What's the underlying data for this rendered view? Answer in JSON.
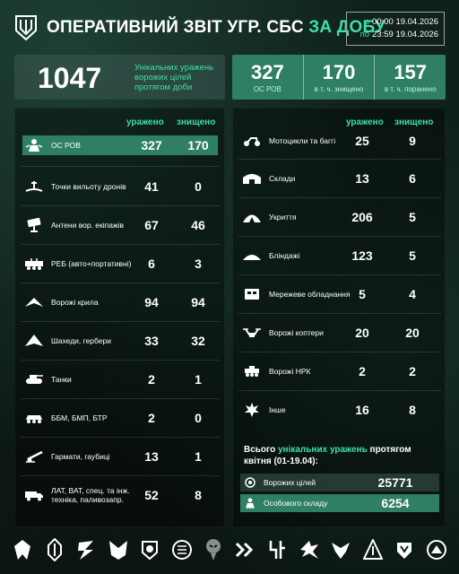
{
  "header": {
    "title_main": "Оперативний звіт УГР. СБС ",
    "title_accent": "за добу",
    "period": {
      "from_label": "з",
      "from_value": "00:00 19.04.2026",
      "to_label": "по",
      "to_value": "23:59 19.04.2026"
    }
  },
  "summary": {
    "unique_hits": "1047",
    "unique_hits_label": "Унікальних уражень ворожих цілей протягом доби",
    "personnel": [
      {
        "value": "327",
        "label": "ОС РОВ"
      },
      {
        "value": "170",
        "label": "в т. ч. знищено"
      },
      {
        "value": "157",
        "label": "в т. ч. поранено"
      }
    ]
  },
  "columns": {
    "hit": "уражено",
    "destroyed": "знищено"
  },
  "left_items": [
    {
      "name": "ОС РОВ",
      "hit": "327",
      "destroyed": "170",
      "icon": "personnel-icon"
    },
    {
      "name": "Точки вильоту дронів",
      "hit": "41",
      "destroyed": "0",
      "icon": "launch-point-icon"
    },
    {
      "name": "Антени вор. екіпажів",
      "hit": "67",
      "destroyed": "46",
      "icon": "antenna-icon"
    },
    {
      "name": "РЕБ (авто+портативні)",
      "hit": "6",
      "destroyed": "3",
      "icon": "ew-icon"
    },
    {
      "name": "Ворожі крила",
      "hit": "94",
      "destroyed": "94",
      "icon": "wing-icon"
    },
    {
      "name": "Шахеди, гербери",
      "hit": "33",
      "destroyed": "32",
      "icon": "shahed-icon"
    },
    {
      "name": "Танки",
      "hit": "2",
      "destroyed": "1",
      "icon": "tank-icon"
    },
    {
      "name": "ББМ, БМП, БТР",
      "hit": "2",
      "destroyed": "0",
      "icon": "apc-icon"
    },
    {
      "name": "Гармати, гаубиці",
      "hit": "13",
      "destroyed": "1",
      "icon": "artillery-icon"
    },
    {
      "name": "ЛАТ, ВАТ, спец. та інж. техніка, паливозапр.",
      "hit": "52",
      "destroyed": "8",
      "icon": "truck-icon"
    }
  ],
  "right_items": [
    {
      "name": "Мотоцикли та баггі",
      "hit": "25",
      "destroyed": "9",
      "icon": "motorcycle-icon"
    },
    {
      "name": "Склади",
      "hit": "13",
      "destroyed": "6",
      "icon": "warehouse-icon"
    },
    {
      "name": "Укриття",
      "hit": "206",
      "destroyed": "5",
      "icon": "shelter-icon"
    },
    {
      "name": "Бліндажі",
      "hit": "123",
      "destroyed": "5",
      "icon": "dugout-icon"
    },
    {
      "name": "Мережеве обладнання",
      "hit": "5",
      "destroyed": "4",
      "icon": "network-icon"
    },
    {
      "name": "Ворожі коптери",
      "hit": "20",
      "destroyed": "20",
      "icon": "copter-icon"
    },
    {
      "name": "Ворожі НРК",
      "hit": "2",
      "destroyed": "2",
      "icon": "ugv-icon"
    },
    {
      "name": "Інше",
      "hit": "16",
      "destroyed": "8",
      "icon": "explosion-icon"
    }
  ],
  "totals": {
    "title_prefix": "Всього ",
    "title_accent": "унікальних уражень",
    "title_suffix": " протягом квітня (01-19.04):",
    "rows": [
      {
        "name": "Ворожих цілей",
        "value": "25771",
        "icon": "target-icon"
      },
      {
        "name": "Особового складу",
        "value": "6254",
        "icon": "personnel-icon"
      }
    ]
  },
  "emblems": [
    "unit-emblem-1",
    "unit-emblem-2",
    "unit-emblem-3",
    "unit-emblem-4",
    "unit-emblem-5",
    "unit-emblem-6",
    "unit-emblem-7",
    "unit-emblem-8",
    "unit-emblem-9",
    "unit-emblem-10",
    "unit-emblem-11",
    "unit-emblem-12",
    "unit-emblem-13",
    "unit-emblem-14"
  ],
  "colors": {
    "accent": "#3ee0a4",
    "highlight": "#2f7f66",
    "background": "#0d1a17"
  }
}
